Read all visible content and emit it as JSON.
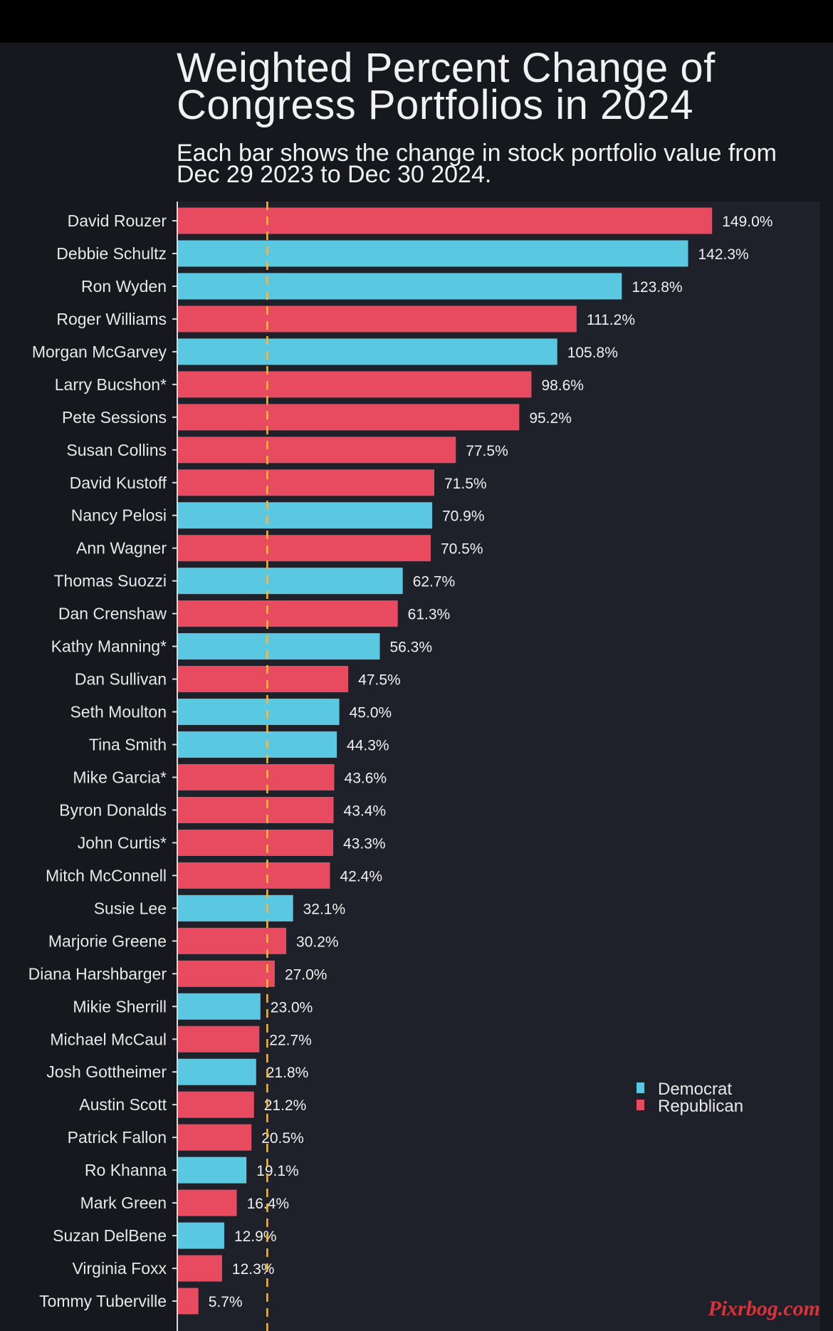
{
  "watermark": "Pixrbog.com",
  "colors": {
    "democrat": "#5bc8e2",
    "republican": "#e84a5f",
    "reference_line": "#f5b942",
    "plot_bg": "#1e2129"
  },
  "chart_data": {
    "type": "bar",
    "orientation": "horizontal",
    "title": "Weighted Percent Change of Congress Portfolios in 2024",
    "subtitle": "Each bar shows the change in stock portfolio value from Dec 29 2023 to Dec 30 2024.",
    "xlim": [
      0,
      150
    ],
    "reference_line": 24.9,
    "legend": {
      "placement": "right",
      "entries": [
        "Democrat",
        "Republican"
      ]
    },
    "grid": false,
    "categories": [
      "David Rouzer",
      "Debbie Schultz",
      "Ron Wyden",
      "Roger Williams",
      "Morgan McGarvey",
      "Larry Bucshon*",
      "Pete Sessions",
      "Susan Collins",
      "David Kustoff",
      "Nancy Pelosi",
      "Ann Wagner",
      "Thomas Suozzi",
      "Dan Crenshaw",
      "Kathy Manning*",
      "Dan Sullivan",
      "Seth Moulton",
      "Tina Smith",
      "Mike Garcia*",
      "Byron Donalds",
      "John Curtis*",
      "Mitch McConnell",
      "Susie Lee",
      "Marjorie Greene",
      "Diana Harshbarger",
      "Mikie Sherrill",
      "Michael McCaul",
      "Josh Gottheimer",
      "Austin Scott",
      "Patrick Fallon",
      "Ro Khanna",
      "Mark Green",
      "Suzan DelBene",
      "Virginia Foxx",
      "Tommy Tuberville"
    ],
    "values": [
      149.0,
      142.3,
      123.8,
      111.2,
      105.8,
      98.6,
      95.2,
      77.5,
      71.5,
      70.9,
      70.5,
      62.7,
      61.3,
      56.3,
      47.5,
      45.0,
      44.3,
      43.6,
      43.4,
      43.3,
      42.4,
      32.1,
      30.2,
      27.0,
      23.0,
      22.7,
      21.8,
      21.2,
      20.5,
      19.1,
      16.4,
      12.9,
      12.3,
      5.7
    ],
    "value_labels": [
      "149.0%",
      "142.3%",
      "123.8%",
      "111.2%",
      "105.8%",
      "98.6%",
      "95.2%",
      "77.5%",
      "71.5%",
      "70.9%",
      "70.5%",
      "62.7%",
      "61.3%",
      "56.3%",
      "47.5%",
      "45.0%",
      "44.3%",
      "43.6%",
      "43.4%",
      "43.3%",
      "42.4%",
      "32.1%",
      "30.2%",
      "27.0%",
      "23.0%",
      "22.7%",
      "21.8%",
      "21.2%",
      "20.5%",
      "19.1%",
      "16.4%",
      "12.9%",
      "12.3%",
      "5.7%"
    ],
    "party": [
      "Republican",
      "Democrat",
      "Democrat",
      "Republican",
      "Democrat",
      "Republican",
      "Republican",
      "Republican",
      "Republican",
      "Democrat",
      "Republican",
      "Democrat",
      "Republican",
      "Democrat",
      "Republican",
      "Democrat",
      "Democrat",
      "Republican",
      "Republican",
      "Republican",
      "Republican",
      "Democrat",
      "Republican",
      "Republican",
      "Democrat",
      "Republican",
      "Democrat",
      "Republican",
      "Republican",
      "Democrat",
      "Republican",
      "Democrat",
      "Republican",
      "Republican"
    ]
  }
}
